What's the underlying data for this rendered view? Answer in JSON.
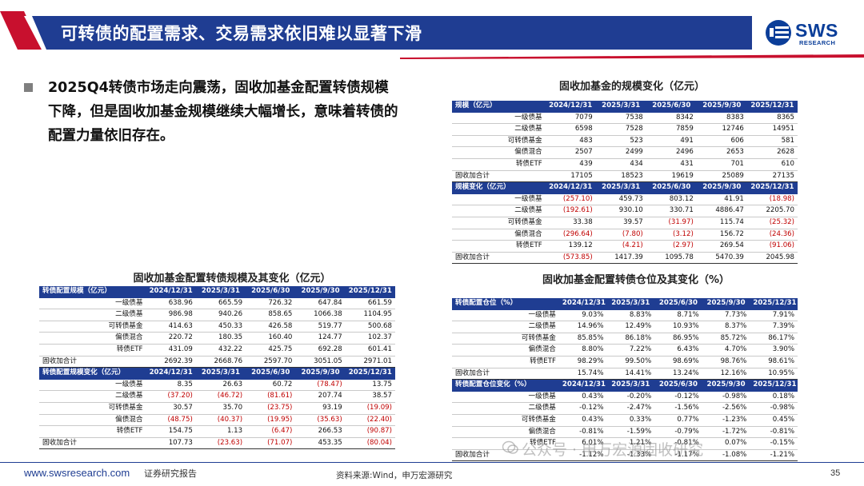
{
  "header": {
    "title": "可转债的配置需求、交易需求依旧难以显著下滑",
    "logo_text": "SWS",
    "logo_sub": "RESEARCH"
  },
  "bullet": "2025Q4转债市场走向震荡，固收加基金配置转债规模下降，但是固收加基金规模继续大幅增长，意味着转债的配置力量依旧存在。",
  "tables": [
    {
      "caption": "固收加基金的规模变化（亿元）",
      "blocks": [
        {
          "header": [
            "规模（亿元）",
            "2024/12/31",
            "2025/3/31",
            "2025/6/30",
            "2025/9/30",
            "2025/12/31"
          ],
          "rows": [
            [
              "一级债基",
              "7079",
              "7538",
              "8342",
              "8383",
              "8365"
            ],
            [
              "二级债基",
              "6598",
              "7528",
              "7859",
              "12746",
              "14951"
            ],
            [
              "可转债基金",
              "483",
              "523",
              "491",
              "606",
              "581"
            ],
            [
              "偏债混合",
              "2507",
              "2499",
              "2496",
              "2653",
              "2628"
            ],
            [
              "转债ETF",
              "439",
              "434",
              "431",
              "701",
              "610"
            ],
            [
              "固收加合计",
              "17105",
              "18523",
              "19619",
              "25089",
              "27135"
            ]
          ]
        },
        {
          "header": [
            "规模变化（亿元）",
            "2024/12/31",
            "2025/3/31",
            "2025/6/30",
            "2025/9/30",
            "2025/12/31"
          ],
          "rows": [
            [
              "一级债基",
              "(257.10)",
              "459.73",
              "803.12",
              "41.91",
              "(18.98)"
            ],
            [
              "二级债基",
              "(192.61)",
              "930.10",
              "330.71",
              "4886.47",
              "2205.70"
            ],
            [
              "可转债基金",
              "33.38",
              "39.57",
              "(31.97)",
              "115.74",
              "(25.32)"
            ],
            [
              "偏债混合",
              "(296.64)",
              "(7.80)",
              "(3.12)",
              "156.72",
              "(24.36)"
            ],
            [
              "转债ETF",
              "139.12",
              "(4.21)",
              "(2.97)",
              "269.54",
              "(91.06)"
            ],
            [
              "固收加合计",
              "(573.85)",
              "1417.39",
              "1095.78",
              "5470.39",
              "2045.98"
            ]
          ]
        }
      ]
    },
    {
      "caption": "固收加基金配置转债规模及其变化（亿元）",
      "blocks": [
        {
          "header": [
            "转债配置规模（亿元）",
            "2024/12/31",
            "2025/3/31",
            "2025/6/30",
            "2025/9/30",
            "2025/12/31"
          ],
          "rows": [
            [
              "一级债基",
              "638.96",
              "665.59",
              "726.32",
              "647.84",
              "661.59"
            ],
            [
              "二级债基",
              "986.98",
              "940.26",
              "858.65",
              "1066.38",
              "1104.95"
            ],
            [
              "可转债基金",
              "414.63",
              "450.33",
              "426.58",
              "519.77",
              "500.68"
            ],
            [
              "偏债混合",
              "220.72",
              "180.35",
              "160.40",
              "124.77",
              "102.37"
            ],
            [
              "转债ETF",
              "431.09",
              "432.22",
              "425.75",
              "692.28",
              "601.41"
            ],
            [
              "固收加合计",
              "2692.39",
              "2668.76",
              "2597.70",
              "3051.05",
              "2971.01"
            ]
          ]
        },
        {
          "header": [
            "转债配置规模变化（亿元）",
            "2024/12/31",
            "2025/3/31",
            "2025/6/30",
            "2025/9/30",
            "2025/12/31"
          ],
          "rows": [
            [
              "一级债基",
              "8.35",
              "26.63",
              "60.72",
              "(78.47)",
              "13.75"
            ],
            [
              "二级债基",
              "(37.20)",
              "(46.72)",
              "(81.61)",
              "207.74",
              "38.57"
            ],
            [
              "可转债基金",
              "30.57",
              "35.70",
              "(23.75)",
              "93.19",
              "(19.09)"
            ],
            [
              "偏债混合",
              "(48.75)",
              "(40.37)",
              "(19.95)",
              "(35.63)",
              "(22.40)"
            ],
            [
              "转债ETF",
              "154.75",
              "1.13",
              "(6.47)",
              "266.53",
              "(90.87)"
            ],
            [
              "固收加合计",
              "107.73",
              "(23.63)",
              "(71.07)",
              "453.35",
              "(80.04)"
            ]
          ]
        }
      ]
    },
    {
      "caption": "固收加基金配置转债仓位及其变化（%）",
      "blocks": [
        {
          "header": [
            "转债配置仓位（%）",
            "2024/12/31",
            "2025/3/31",
            "2025/6/30",
            "2025/9/30",
            "2025/12/31"
          ],
          "rows": [
            [
              "一级债基",
              "9.03%",
              "8.83%",
              "8.71%",
              "7.73%",
              "7.91%"
            ],
            [
              "二级债基",
              "14.96%",
              "12.49%",
              "10.93%",
              "8.37%",
              "7.39%"
            ],
            [
              "可转债基金",
              "85.85%",
              "86.18%",
              "86.95%",
              "85.72%",
              "86.17%"
            ],
            [
              "偏债混合",
              "8.80%",
              "7.22%",
              "6.43%",
              "4.70%",
              "3.90%"
            ],
            [
              "转债ETF",
              "98.29%",
              "99.50%",
              "98.69%",
              "98.76%",
              "98.61%"
            ],
            [
              "固收加合计",
              "15.74%",
              "14.41%",
              "13.24%",
              "12.16%",
              "10.95%"
            ]
          ]
        },
        {
          "header": [
            "转债配置仓位变化（%）",
            "2024/12/31",
            "2025/3/31",
            "2025/6/30",
            "2025/9/30",
            "2025/12/31"
          ],
          "rows": [
            [
              "一级债基",
              "0.43%",
              "-0.20%",
              "-0.12%",
              "-0.98%",
              "0.18%"
            ],
            [
              "二级债基",
              "-0.12%",
              "-2.47%",
              "-1.56%",
              "-2.56%",
              "-0.98%"
            ],
            [
              "可转债基金",
              "0.43%",
              "0.33%",
              "0.77%",
              "-1.23%",
              "0.45%"
            ],
            [
              "偏债混合",
              "-0.81%",
              "-1.59%",
              "-0.79%",
              "-1.72%",
              "-0.81%"
            ],
            [
              "转债ETF",
              "6.01%",
              "1.21%",
              "-0.81%",
              "0.07%",
              "-0.15%"
            ],
            [
              "固收加合计",
              "-1.12%",
              "-1.33%",
              "-1.17%",
              "-1.08%",
              "-1.21%"
            ]
          ]
        }
      ]
    }
  ],
  "watermark": "公众号 · 申万宏源固收研究",
  "footer": {
    "url": "www.swsresearch.com",
    "report": "证券研究报告",
    "source": "资料来源:Wind，申万宏源研究",
    "page": "35"
  },
  "colors": {
    "navy": "#1f3d92",
    "red": "#c00000",
    "title_red": "#c8102e"
  }
}
